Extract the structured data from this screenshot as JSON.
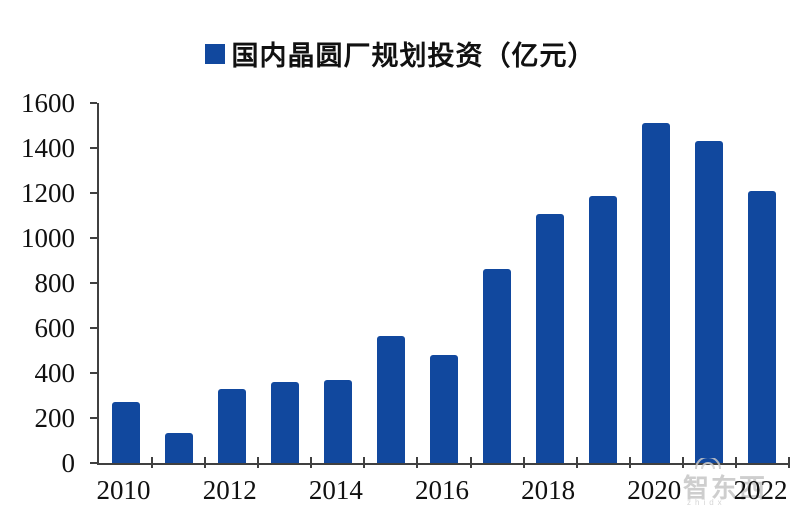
{
  "legend": {
    "label": "国内晶圆厂规划投资（亿元）"
  },
  "chart_data": {
    "type": "bar",
    "title": "国内晶圆厂规划投资（亿元）",
    "categories": [
      "2010",
      "2011",
      "2012",
      "2013",
      "2014",
      "2015",
      "2016",
      "2017",
      "2018",
      "2019",
      "2020",
      "2021",
      "2022"
    ],
    "values": [
      270,
      133,
      330,
      360,
      370,
      566,
      478,
      862,
      1105,
      1185,
      1512,
      1432,
      1210
    ],
    "xlabel": "",
    "ylabel": "",
    "unit": "亿元",
    "ylim": [
      0,
      1600
    ],
    "yticks": [
      0,
      200,
      400,
      600,
      800,
      1000,
      1200,
      1400,
      1600
    ],
    "xtick_labels": [
      "2010",
      "2012",
      "2014",
      "2016",
      "2018",
      "2020",
      "2022"
    ],
    "bar_color": "#11489E",
    "axis_color": "#404040",
    "grid": false,
    "legend_position": "top-center"
  },
  "watermark": {
    "text": "智东西",
    "subtext": "zhidx",
    "color": "#c6c6c6"
  }
}
